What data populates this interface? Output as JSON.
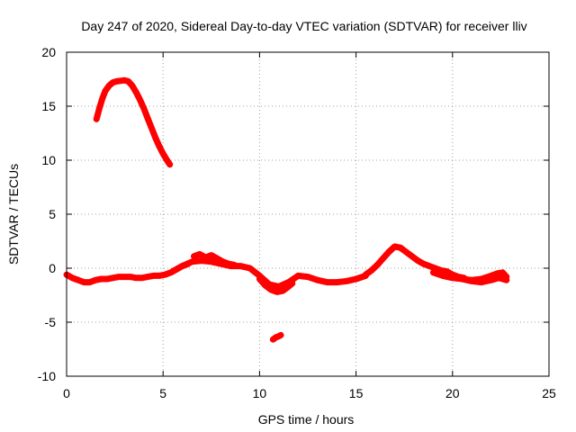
{
  "chart_data": {
    "type": "line",
    "title": "Day 247 of 2020, Sidereal Day-to-day VTEC variation (SDTVAR) for receiver lliv",
    "xlabel": "GPS time / hours",
    "ylabel": "SDTVAR / TECUs",
    "xlim": [
      0,
      25
    ],
    "ylim": [
      -10,
      20
    ],
    "x_ticks": [
      0,
      5,
      10,
      15,
      20,
      25
    ],
    "y_ticks": [
      -10,
      -5,
      0,
      5,
      10,
      15,
      20
    ],
    "x_tick_labels": [
      "0",
      "5",
      "10",
      "15",
      "20",
      "25"
    ],
    "y_tick_labels": [
      "-10",
      "-5",
      "0",
      "5",
      "10",
      "15",
      "20"
    ],
    "grid": true,
    "legend": "none",
    "color": "#ff0000",
    "series": [
      {
        "name": "satellite-arc-high",
        "x": [
          1.55,
          1.7,
          1.85,
          2.0,
          2.2,
          2.4,
          2.6,
          2.8,
          3.0,
          3.2,
          3.4,
          3.6,
          3.8,
          4.0,
          4.2,
          4.4,
          4.6,
          4.8,
          5.0,
          5.2,
          5.35
        ],
        "y": [
          13.8,
          14.8,
          15.7,
          16.4,
          16.9,
          17.2,
          17.3,
          17.35,
          17.4,
          17.3,
          16.9,
          16.3,
          15.6,
          14.8,
          13.9,
          13.0,
          12.1,
          11.3,
          10.6,
          10.0,
          9.6
        ]
      },
      {
        "name": "satellite-arc-early",
        "x": [
          0.0,
          0.3,
          0.6,
          0.9,
          1.2,
          1.5,
          1.8,
          2.1,
          2.4,
          2.7,
          3.0,
          3.3,
          3.6,
          3.9,
          4.2,
          4.5,
          4.8,
          5.1,
          5.4,
          5.7,
          6.0,
          6.3
        ],
        "y": [
          -0.6,
          -0.9,
          -1.1,
          -1.3,
          -1.3,
          -1.1,
          -1.0,
          -1.0,
          -0.9,
          -0.8,
          -0.8,
          -0.8,
          -0.9,
          -0.9,
          -0.8,
          -0.7,
          -0.7,
          -0.6,
          -0.4,
          -0.1,
          0.2,
          0.4
        ]
      },
      {
        "name": "satellite-arc-mid",
        "x": [
          5.5,
          6.0,
          6.5,
          7.0,
          7.5,
          8.0,
          8.5,
          9.0,
          9.5,
          10.0,
          10.5,
          11.0,
          11.5,
          12.0,
          12.5,
          13.0,
          13.5,
          14.0,
          14.5,
          15.0,
          15.5
        ],
        "y": [
          -0.3,
          0.2,
          0.6,
          0.7,
          0.6,
          0.4,
          0.2,
          0.2,
          0.0,
          -0.7,
          -1.5,
          -1.7,
          -1.3,
          -0.7,
          -0.8,
          -1.1,
          -1.3,
          -1.3,
          -1.2,
          -1.0,
          -0.7
        ]
      },
      {
        "name": "satellite-arc-dip",
        "x": [
          10.0,
          10.3,
          10.6,
          10.9,
          11.2,
          11.5,
          11.7
        ],
        "y": [
          -1.0,
          -1.6,
          -2.0,
          -2.2,
          -2.1,
          -1.7,
          -1.4
        ]
      },
      {
        "name": "satellite-arc-upper-mid",
        "x": [
          6.6,
          6.9,
          7.2,
          7.5,
          7.8,
          8.1,
          8.4,
          8.7
        ],
        "y": [
          1.1,
          1.3,
          1.0,
          1.2,
          0.9,
          0.6,
          0.4,
          0.3
        ]
      },
      {
        "name": "satellite-arc-peak",
        "x": [
          15.5,
          15.8,
          16.1,
          16.4,
          16.7,
          17.0,
          17.3,
          17.6,
          17.9,
          18.2,
          18.5,
          18.8,
          19.1,
          19.4,
          19.7,
          20.0,
          20.3,
          20.6
        ],
        "y": [
          -0.6,
          -0.2,
          0.3,
          0.9,
          1.5,
          2.0,
          1.9,
          1.5,
          1.1,
          0.7,
          0.4,
          0.2,
          0.0,
          -0.2,
          -0.3,
          -0.6,
          -0.8,
          -0.9
        ]
      },
      {
        "name": "satellite-arc-late",
        "x": [
          19.0,
          19.5,
          20.0,
          20.5,
          21.0,
          21.5,
          22.0,
          22.3,
          22.6,
          22.8
        ],
        "y": [
          -0.4,
          -0.7,
          -0.9,
          -1.0,
          -1.1,
          -1.0,
          -0.7,
          -0.5,
          -0.4,
          -0.8
        ]
      },
      {
        "name": "satellite-arc-late-lower",
        "x": [
          20.5,
          21.0,
          21.5,
          22.0,
          22.4,
          22.8
        ],
        "y": [
          -1.0,
          -1.2,
          -1.3,
          -1.1,
          -0.9,
          -1.1
        ]
      },
      {
        "name": "satellite-arc-short",
        "x": [
          10.7,
          10.85,
          11.0,
          11.1
        ],
        "y": [
          -6.6,
          -6.4,
          -6.3,
          -6.2
        ]
      }
    ]
  }
}
